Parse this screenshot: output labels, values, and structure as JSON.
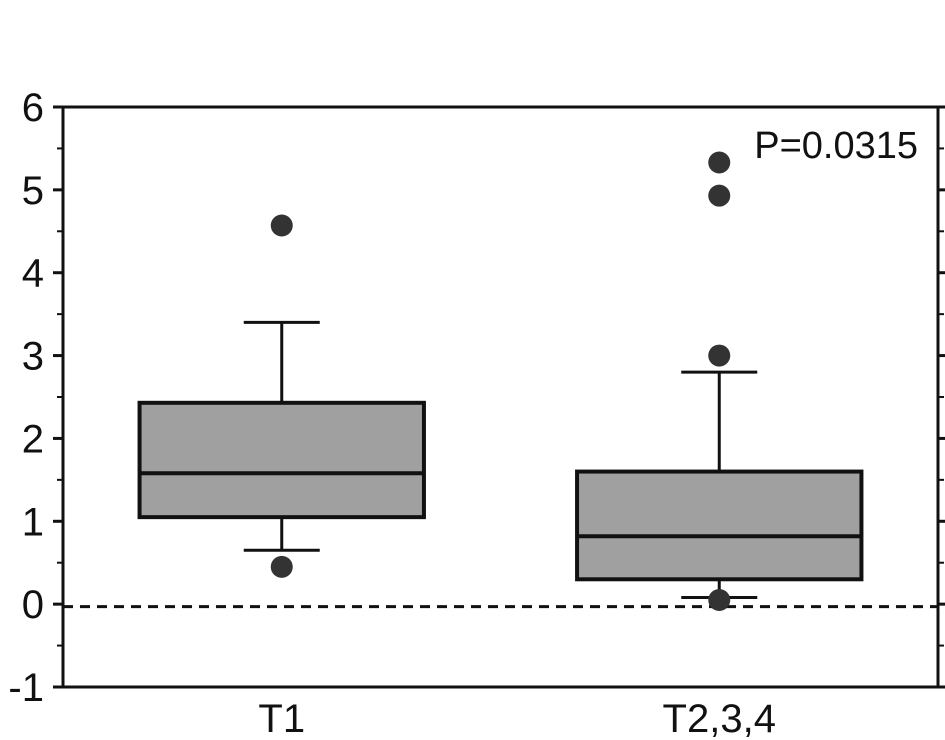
{
  "chart_data": {
    "type": "box",
    "categories": [
      "T1",
      "T2,3,4"
    ],
    "boxes": [
      {
        "category": "T1",
        "whisker_low": 0.65,
        "q1": 1.05,
        "median": 1.58,
        "q3": 2.43,
        "whisker_high": 3.4,
        "outliers": [
          4.57,
          0.45
        ]
      },
      {
        "category": "T2,3,4",
        "whisker_low": 0.08,
        "q1": 0.3,
        "median": 0.82,
        "q3": 1.6,
        "whisker_high": 2.8,
        "outliers": [
          5.33,
          4.93,
          3.0,
          0.05
        ]
      }
    ],
    "ylim": [
      -1,
      6
    ],
    "yticks": [
      "-1",
      "0",
      "1",
      "2",
      "3",
      "4",
      "5",
      "6"
    ],
    "reference_line": {
      "y": -0.03,
      "style": "dashed"
    },
    "annotation": "P=0.0315",
    "colors": {
      "box_fill": "#a0a0a0",
      "outline": "#111111",
      "outlier": "#333333"
    },
    "grid": false
  }
}
